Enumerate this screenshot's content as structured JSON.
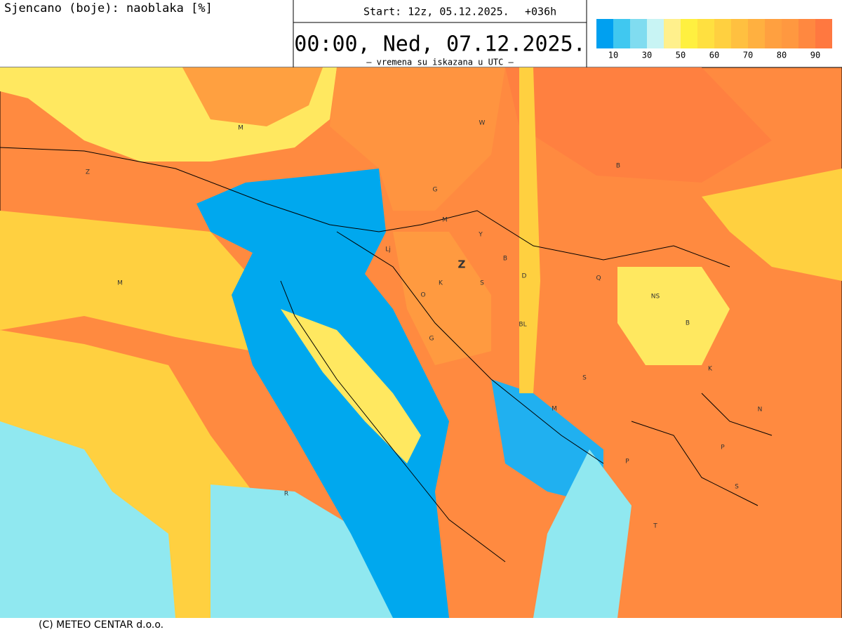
{
  "header": {
    "title": "Sjencano (boje): naoblaka [%]",
    "start": "Start: 12z, 05.12.2025.",
    "lead": "+036h",
    "valid": "00:00, Ned, 07.12.2025.",
    "note": "– vremena su iskazana u UTC –"
  },
  "legend": {
    "colors": [
      "#00a0f0",
      "#40c8f0",
      "#80dcf0",
      "#c8f4f4",
      "#fff08c",
      "#fff040",
      "#ffe040",
      "#ffd040",
      "#ffc040",
      "#ffb040",
      "#ffa040",
      "#ff9840",
      "#ff8840",
      "#ff7840"
    ],
    "ticks": [
      10,
      30,
      50,
      60,
      70,
      80,
      90
    ]
  },
  "map": {
    "labels": [
      "M",
      "W",
      "Z",
      "B",
      "G",
      "M",
      "Y",
      "Lj",
      "Z",
      "B",
      "D",
      "K",
      "S",
      "Q",
      "O",
      "NS",
      "BL",
      "B",
      "G",
      "K",
      "S",
      "M",
      "N",
      "P",
      "P",
      "S",
      "R",
      "T",
      "M"
    ]
  },
  "footer": {
    "copyright": "(C) METEO CENTAR d.o.o."
  }
}
